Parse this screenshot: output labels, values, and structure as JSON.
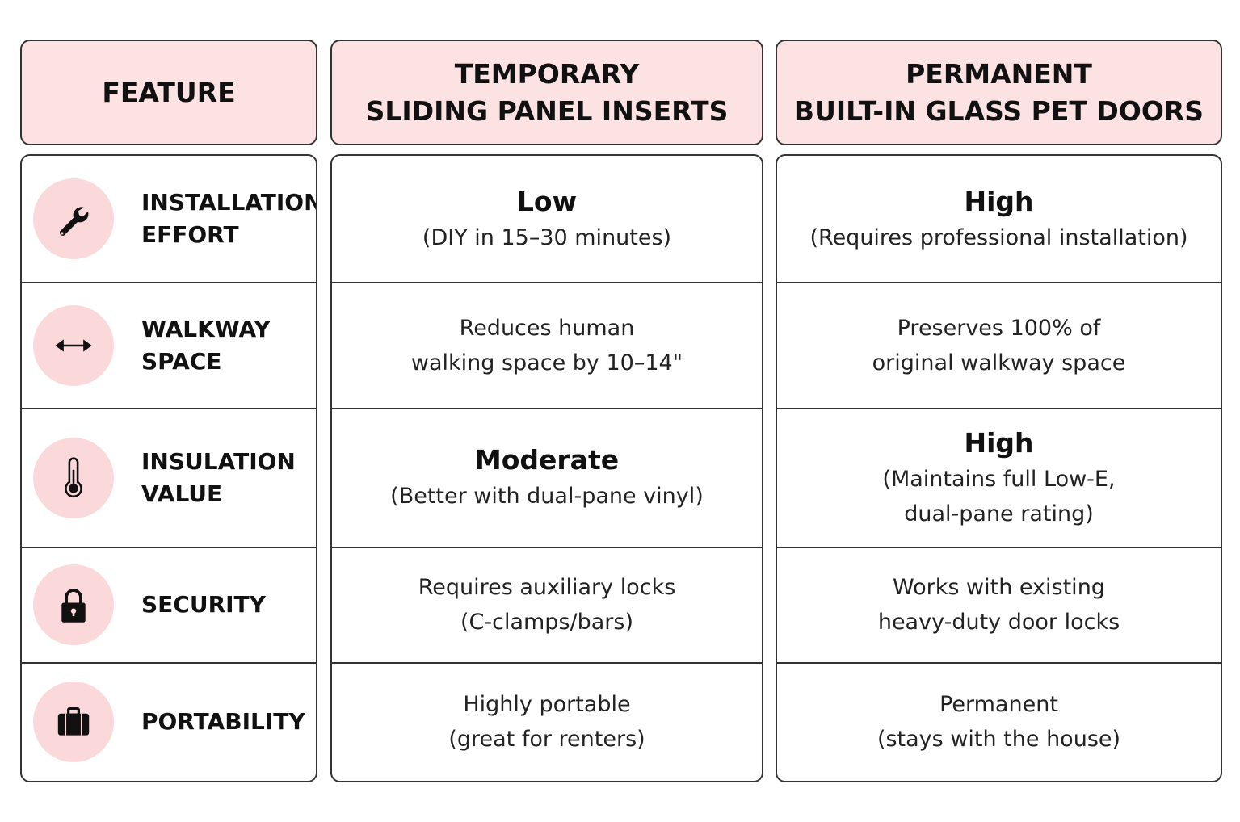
{
  "table": {
    "headers": [
      [
        "FEATURE"
      ],
      [
        "TEMPORARY",
        "SLIDING PANEL INSERTS"
      ],
      [
        "PERMANENT",
        "BUILT-IN GLASS PET DOORS"
      ]
    ],
    "rows": [
      {
        "feature": [
          "INSTALLATION",
          "EFFORT"
        ],
        "temporary": {
          "rating": "Low",
          "lines": [
            "(DIY in 15–30 minutes)"
          ]
        },
        "permanent": {
          "rating": "High",
          "lines": [
            "(Requires professional installation)"
          ]
        }
      },
      {
        "feature": [
          "WALKWAY",
          "SPACE"
        ],
        "temporary": {
          "lines": [
            "Reduces human",
            "walking space by 10–14\""
          ]
        },
        "permanent": {
          "lines": [
            "Preserves 100% of",
            "original walkway space"
          ]
        }
      },
      {
        "feature": [
          "INSULATION",
          "VALUE"
        ],
        "temporary": {
          "rating": "Moderate",
          "lines": [
            "(Better with dual-pane vinyl)"
          ]
        },
        "permanent": {
          "rating": "High",
          "lines": [
            "(Maintains full Low-E,",
            "dual-pane rating)"
          ]
        }
      },
      {
        "feature": [
          "SECURITY"
        ],
        "temporary": {
          "lines": [
            "Requires auxiliary locks",
            "(C-clamps/bars)"
          ]
        },
        "permanent": {
          "lines": [
            "Works with existing",
            "heavy-duty door locks"
          ]
        }
      },
      {
        "feature": [
          "PORTABILITY"
        ],
        "temporary": {
          "lines": [
            "Highly portable",
            "(great for renters)"
          ]
        },
        "permanent": {
          "lines": [
            "Permanent",
            "(stays with the house)"
          ]
        }
      }
    ]
  }
}
